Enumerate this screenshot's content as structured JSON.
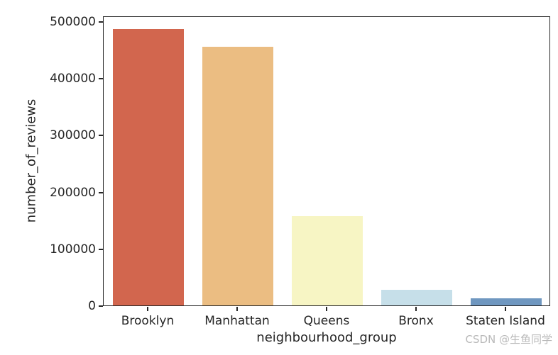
{
  "chart_data": {
    "type": "bar",
    "categories": [
      "Brooklyn",
      "Manhattan",
      "Queens",
      "Bronx",
      "Staten Island"
    ],
    "values": [
      486000,
      455000,
      157000,
      28000,
      12000
    ],
    "bar_colors": [
      "#d2664e",
      "#ebbd82",
      "#f7f5c4",
      "#c6dfe9",
      "#6f97c0"
    ],
    "xlabel": "neighbourhood_group",
    "ylabel": "number_of_reviews",
    "ylim": [
      0,
      510000
    ],
    "yticks": [
      0,
      100000,
      200000,
      300000,
      400000,
      500000
    ],
    "grid": false,
    "legend": "none",
    "spine_color": "#262626",
    "text_color": "#262626",
    "background_color": "#ffffff"
  },
  "watermark": {
    "text": "CSDN @生鱼同学",
    "color": "#b9b9b9"
  }
}
